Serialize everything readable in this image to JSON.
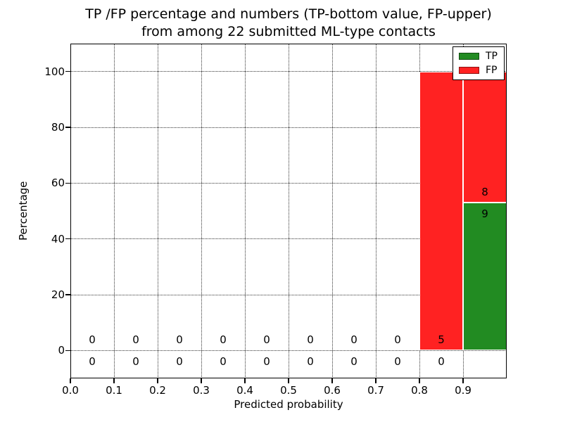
{
  "figure": {
    "title_line1": "TP /FP percentage and numbers (TP-bottom value, FP-upper)",
    "title_line2": "from among 22 submitted ML-type contacts",
    "xlabel": "Predicted probability",
    "ylabel": "Percentage"
  },
  "legend": {
    "entries": [
      {
        "label": "TP",
        "color": "#228b22"
      },
      {
        "label": "FP",
        "color": "#ff2222"
      }
    ],
    "position": "upper right"
  },
  "chart_data": {
    "type": "bar",
    "stacked": true,
    "title": "TP /FP percentage and numbers (TP-bottom value, FP-upper) from among 22 submitted ML-type contacts",
    "xlabel": "Predicted probability",
    "ylabel": "Percentage",
    "bin_edges": [
      0.0,
      0.1,
      0.2,
      0.3,
      0.4,
      0.5,
      0.6,
      0.7,
      0.8,
      0.9,
      1.0
    ],
    "series": [
      {
        "name": "TP",
        "color": "#228b22",
        "counts": [
          0,
          0,
          0,
          0,
          0,
          0,
          0,
          0,
          0,
          9
        ],
        "percent": [
          0,
          0,
          0,
          0,
          0,
          0,
          0,
          0,
          0,
          52.94
        ]
      },
      {
        "name": "FP",
        "color": "#ff2222",
        "counts": [
          0,
          0,
          0,
          0,
          0,
          0,
          0,
          0,
          5,
          8
        ],
        "percent": [
          0,
          0,
          0,
          0,
          0,
          0,
          0,
          0,
          100,
          47.06
        ]
      }
    ],
    "xticks": [
      0,
      0.1,
      0.2,
      0.3,
      0.4,
      0.5,
      0.6,
      0.7,
      0.8,
      0.9
    ],
    "xtick_labels": [
      "0.0",
      "0.1",
      "0.2",
      "0.3",
      "0.4",
      "0.5",
      "0.6",
      "0.7",
      "0.8",
      "0.9"
    ],
    "yticks": [
      0,
      20,
      40,
      60,
      80,
      100
    ],
    "xlim": [
      0,
      1
    ],
    "ylim": [
      -10,
      110
    ],
    "grid": true,
    "legend_position": "upper right"
  }
}
